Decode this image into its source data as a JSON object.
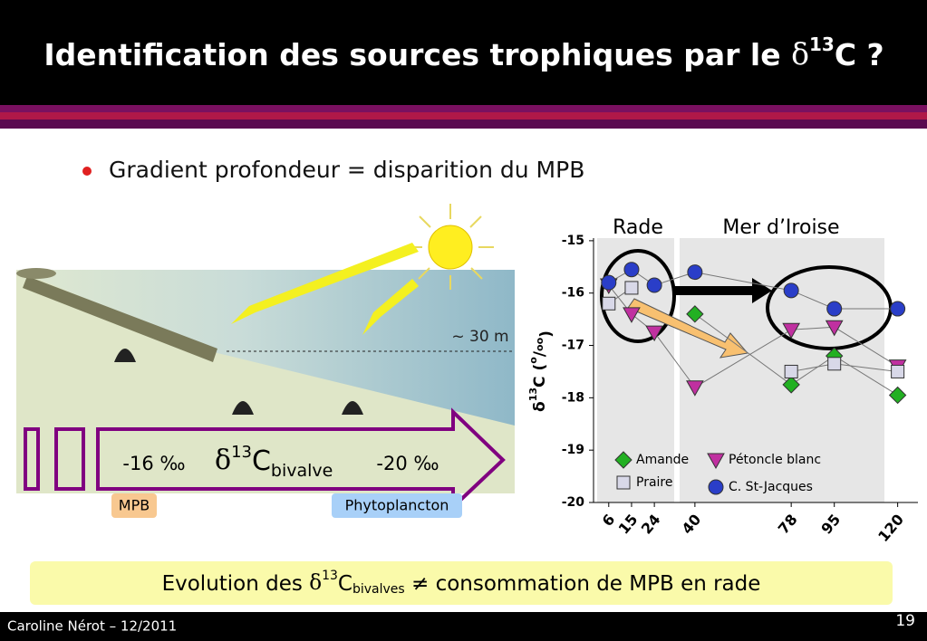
{
  "header": {
    "title": [
      "Identification des sources trophiques par le ",
      "δ",
      "13",
      "C ?"
    ]
  },
  "bullet": "Gradient profondeur = disparition du MPB",
  "illustration": {
    "depth": "~ 30 m",
    "left_value": "-16 ‰",
    "symbol": [
      "δ",
      "13",
      "C",
      "bivalve"
    ],
    "right_value": "-20 ‰",
    "left_tag": "MPB",
    "right_tag": "Phytoplancton"
  },
  "banner": [
    "Evolution des ",
    "δ",
    "13",
    "C",
    "bivalves",
    " ≠ consommation de MPB en rade"
  ],
  "footer": {
    "author": "Caroline Nérot – 12/2011",
    "page": "19"
  },
  "chart_data": {
    "type": "line",
    "regions": [
      "Rade",
      "Mer d’Iroise"
    ],
    "ylabel": [
      "δ",
      "13",
      "C (",
      "o",
      "/",
      "oo",
      ")"
    ],
    "x": [
      6,
      15,
      24,
      40,
      78,
      95,
      120
    ],
    "xlim": [
      0,
      128
    ],
    "xticks": [
      6,
      15,
      24,
      40,
      78,
      95,
      120
    ],
    "ylim": [
      -20,
      -14.95
    ],
    "yticks": [
      -15,
      -16,
      -17,
      -18,
      -19,
      -20
    ],
    "line_color": "#777777",
    "series": [
      {
        "name": "Amande",
        "marker": "diamond",
        "color": "#22b022",
        "values": [
          null,
          null,
          null,
          -16.4,
          -17.75,
          -17.2,
          -17.95
        ]
      },
      {
        "name": "Pétoncle blanc",
        "marker": "triangle",
        "color": "#c030a0",
        "values": [
          -15.85,
          -16.4,
          -16.75,
          -17.8,
          -16.7,
          -16.65,
          -17.4
        ]
      },
      {
        "name": "Praire",
        "marker": "square",
        "color": "#d8d8e8",
        "values": [
          -16.2,
          -15.9,
          null,
          null,
          -17.5,
          -17.35,
          -17.5
        ]
      },
      {
        "name": "C. St-Jacques",
        "marker": "circle",
        "color": "#2a3ec8",
        "values": [
          -15.8,
          -15.55,
          -15.85,
          -15.6,
          -15.95,
          -16.3,
          -16.3
        ]
      }
    ]
  }
}
